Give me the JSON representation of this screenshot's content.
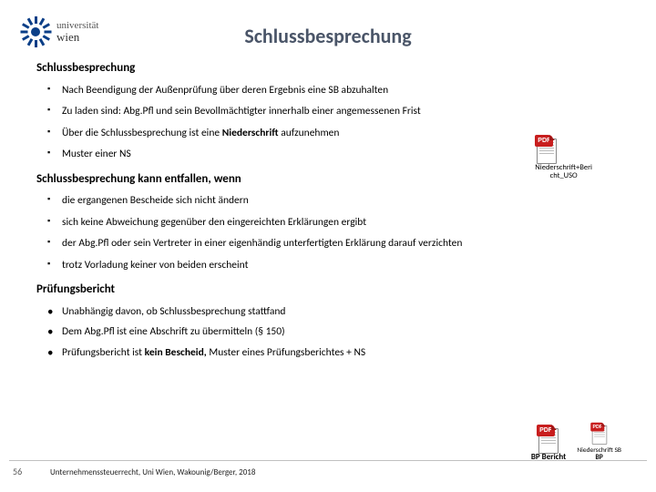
{
  "logo": {
    "top": "universität",
    "bottom": "wien"
  },
  "title": "Schlussbesprechung",
  "s1": {
    "heading": "Schlussbesprechung",
    "items": [
      "Nach Beendigung der Außenprüfung über deren Ergebnis eine SB abzuhalten",
      "Zu laden sind: Abg.Pfl und sein Bevollmächtigter innerhalb einer angemessenen Frist",
      "Über die Schlussbesprechung ist eine",
      "Muster einer NS"
    ],
    "bold3": " Niederschrift ",
    "tail3": "aufzunehmen"
  },
  "s2": {
    "heading_a": "Schlussbesprechung",
    "heading_b": " kann entfallen, wenn",
    "items": [
      "die ergangenen Bescheide sich nicht ändern",
      "sich keine Abweichung gegenüber den eingereichten Erklärungen ergibt",
      "der Abg.Pfl oder sein Vertreter in einer eigenhändig unterfertigten Erklärung darauf verzichten",
      "trotz Vorladung keiner von beiden erscheint"
    ]
  },
  "s3": {
    "heading": "Prüfungsbericht",
    "items": [
      "Unabhängig davon, ob Schlussbesprechung stattfand",
      "Dem Abg.Pfl ist eine Abschrift zu übermitteln (§ 150)"
    ],
    "last_a": "Prüfungsbericht ist ",
    "last_bold": "kein Bescheid, ",
    "last_b": "Muster eines Prüfungsberichtes + NS"
  },
  "attach1_caption": "Niederschrift+Beri",
  "attach1_caption2": "cht_USO",
  "attach2a": "BP Bericht",
  "attach2b_top": "Niederschrift SB",
  "attach2b_bot": "BP",
  "pdf_badge": "PDF",
  "page": "56",
  "footer": "Unternehmenssteuerrecht, Uni Wien, Wakounig/Berger, 2018"
}
